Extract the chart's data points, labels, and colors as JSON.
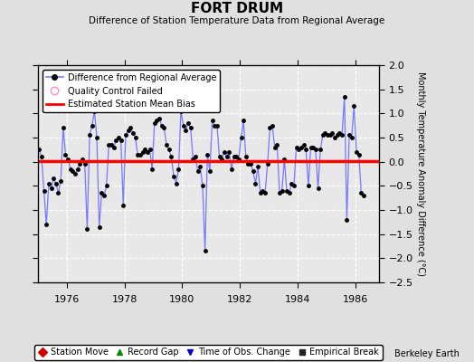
{
  "title": "FORT DRUM",
  "subtitle": "Difference of Station Temperature Data from Regional Average",
  "ylabel": "Monthly Temperature Anomaly Difference (°C)",
  "bias_value": 0.02,
  "xlim": [
    1975.0,
    1986.83
  ],
  "ylim": [
    -2.5,
    2.0
  ],
  "yticks": [
    -2.5,
    -2.0,
    -1.5,
    -1.0,
    -0.5,
    0.0,
    0.5,
    1.0,
    1.5,
    2.0
  ],
  "xticks": [
    1976,
    1978,
    1980,
    1982,
    1984,
    1986
  ],
  "line_color": "#7777ff",
  "marker_color": "#000000",
  "bias_color": "#ff0000",
  "fig_bg_color": "#e0e0e0",
  "plot_bg_color": "#e8e8e8",
  "grid_color": "#ffffff",
  "watermark": "Berkeley Earth",
  "x_data": [
    1975.042,
    1975.125,
    1975.208,
    1975.292,
    1975.375,
    1975.458,
    1975.542,
    1975.625,
    1975.708,
    1975.792,
    1975.875,
    1975.958,
    1976.042,
    1976.125,
    1976.208,
    1976.292,
    1976.375,
    1976.458,
    1976.542,
    1976.625,
    1976.708,
    1976.792,
    1976.875,
    1976.958,
    1977.042,
    1977.125,
    1977.208,
    1977.292,
    1977.375,
    1977.458,
    1977.542,
    1977.625,
    1977.708,
    1977.792,
    1977.875,
    1977.958,
    1978.042,
    1978.125,
    1978.208,
    1978.292,
    1978.375,
    1978.458,
    1978.542,
    1978.625,
    1978.708,
    1978.792,
    1978.875,
    1978.958,
    1979.042,
    1979.125,
    1979.208,
    1979.292,
    1979.375,
    1979.458,
    1979.542,
    1979.625,
    1979.708,
    1979.792,
    1979.875,
    1979.958,
    1980.042,
    1980.125,
    1980.208,
    1980.292,
    1980.375,
    1980.458,
    1980.542,
    1980.625,
    1980.708,
    1980.792,
    1980.875,
    1980.958,
    1981.042,
    1981.125,
    1981.208,
    1981.292,
    1981.375,
    1981.458,
    1981.542,
    1981.625,
    1981.708,
    1981.792,
    1981.875,
    1981.958,
    1982.042,
    1982.125,
    1982.208,
    1982.292,
    1982.375,
    1982.458,
    1982.542,
    1982.625,
    1982.708,
    1982.792,
    1982.875,
    1982.958,
    1983.042,
    1983.125,
    1983.208,
    1983.292,
    1983.375,
    1983.458,
    1983.542,
    1983.625,
    1983.708,
    1983.792,
    1983.875,
    1983.958,
    1984.042,
    1984.125,
    1984.208,
    1984.292,
    1984.375,
    1984.458,
    1984.542,
    1984.625,
    1984.708,
    1984.792,
    1984.875,
    1984.958,
    1985.042,
    1985.125,
    1985.208,
    1985.292,
    1985.375,
    1985.458,
    1985.542,
    1985.625,
    1985.708,
    1985.792,
    1985.875,
    1985.958,
    1986.042,
    1986.125,
    1986.208,
    1986.292
  ],
  "y_data": [
    0.25,
    0.1,
    -0.6,
    -1.3,
    -0.45,
    -0.55,
    -0.35,
    -0.45,
    -0.65,
    -0.4,
    0.7,
    0.15,
    0.05,
    -0.15,
    -0.2,
    -0.25,
    -0.15,
    -0.05,
    0.05,
    -0.05,
    -1.4,
    0.55,
    0.75,
    1.05,
    0.5,
    -1.35,
    -0.65,
    -0.7,
    -0.5,
    0.35,
    0.35,
    0.3,
    0.45,
    0.5,
    0.45,
    -0.9,
    0.55,
    0.65,
    0.7,
    0.6,
    0.5,
    0.15,
    0.15,
    0.2,
    0.25,
    0.2,
    0.25,
    -0.15,
    0.8,
    0.85,
    0.9,
    0.75,
    0.7,
    0.35,
    0.25,
    0.1,
    -0.3,
    -0.45,
    -0.15,
    1.05,
    0.75,
    0.65,
    0.8,
    0.7,
    0.05,
    0.1,
    -0.2,
    -0.1,
    -0.5,
    -1.85,
    0.15,
    -0.2,
    0.85,
    0.75,
    0.75,
    0.1,
    0.05,
    0.2,
    0.1,
    0.2,
    -0.15,
    0.1,
    0.1,
    0.05,
    0.5,
    0.85,
    0.1,
    -0.05,
    -0.05,
    -0.2,
    -0.45,
    -0.1,
    -0.65,
    -0.6,
    -0.65,
    -0.05,
    0.7,
    0.75,
    0.3,
    0.35,
    -0.65,
    -0.6,
    0.05,
    -0.6,
    -0.65,
    -0.45,
    -0.5,
    0.3,
    0.25,
    0.3,
    0.35,
    0.25,
    -0.5,
    0.3,
    0.3,
    0.25,
    -0.55,
    0.25,
    0.55,
    0.6,
    0.55,
    0.55,
    0.6,
    0.5,
    0.55,
    0.6,
    0.55,
    1.35,
    -1.2,
    0.55,
    0.5,
    1.15,
    0.2,
    0.15,
    -0.65,
    -0.7
  ]
}
